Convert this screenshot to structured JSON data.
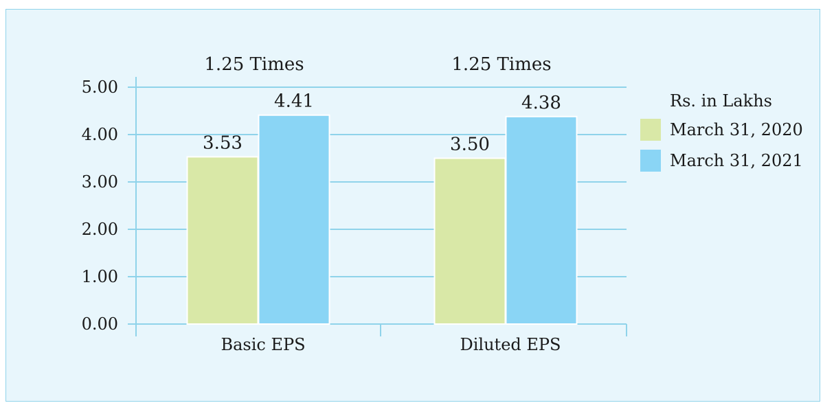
{
  "chart_data": {
    "type": "bar",
    "categories": [
      "Basic EPS",
      "Diluted EPS"
    ],
    "series": [
      {
        "name": "March 31, 2020",
        "values": [
          3.53,
          3.5
        ],
        "labels": [
          "3.53",
          "3.50"
        ],
        "color": "#d9e8a7"
      },
      {
        "name": "March 31, 2021",
        "values": [
          4.41,
          4.38
        ],
        "labels": [
          "4.41",
          "4.38"
        ],
        "color": "#8ad5f5"
      }
    ],
    "ratio_labels": [
      "1.25 Times",
      "1.25 Times"
    ],
    "yticks": [
      "0.00",
      "1.00",
      "2.00",
      "3.00",
      "4.00",
      "5.00"
    ],
    "ylim": [
      0,
      5
    ],
    "legend_title": "Rs. in Lakhs",
    "legend_position": "right",
    "grid": true,
    "grid_color": "#8fd3ea",
    "background_color": "#e8f6fc"
  }
}
